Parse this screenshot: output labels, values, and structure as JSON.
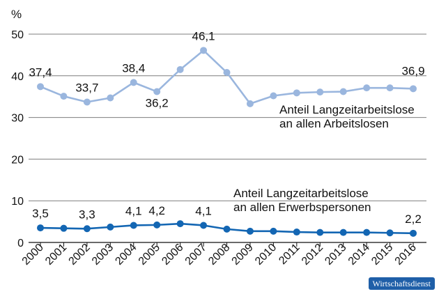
{
  "chart_data": {
    "type": "line",
    "ylabel": "%",
    "ylim": [
      0,
      50
    ],
    "yticks": [
      0,
      10,
      20,
      30,
      40,
      50
    ],
    "categories": [
      "2000",
      "2001",
      "2002",
      "2003",
      "2004",
      "2005",
      "2006",
      "2007",
      "2008",
      "2009",
      "2010",
      "2011",
      "2012",
      "2013",
      "2014",
      "2015",
      "2016"
    ],
    "series": [
      {
        "name": "Anteil Langzeitarbeitslose an allen Arbeitslosen",
        "name_lines": [
          "Anteil Langzeitarbeitslose",
          "an allen Arbeitslosen"
        ],
        "color": "#9ab6de",
        "values": [
          37.4,
          35.1,
          33.7,
          34.7,
          38.4,
          36.2,
          41.5,
          46.1,
          40.8,
          33.3,
          35.2,
          35.9,
          36.1,
          36.2,
          37.1,
          37.1,
          36.9
        ],
        "labels": [
          {
            "index": 0,
            "text": "37,4"
          },
          {
            "index": 2,
            "text": "33,7"
          },
          {
            "index": 4,
            "text": "38,4"
          },
          {
            "index": 5,
            "text": "36,2"
          },
          {
            "index": 7,
            "text": "46,1"
          },
          {
            "index": 16,
            "text": "36,9"
          }
        ]
      },
      {
        "name": "Anteil Langzeitarbeitslose an allen Erwerbspersonen",
        "name_lines": [
          "Anteil Langzeitarbeitslose",
          "an allen Erwerbspersonen"
        ],
        "color": "#1366b3",
        "values": [
          3.5,
          3.4,
          3.3,
          3.7,
          4.1,
          4.2,
          4.5,
          4.1,
          3.2,
          2.7,
          2.7,
          2.5,
          2.4,
          2.4,
          2.4,
          2.3,
          2.2
        ],
        "labels": [
          {
            "index": 0,
            "text": "3,5"
          },
          {
            "index": 2,
            "text": "3,3"
          },
          {
            "index": 4,
            "text": "4,1"
          },
          {
            "index": 5,
            "text": "4,2"
          },
          {
            "index": 7,
            "text": "4,1"
          },
          {
            "index": 16,
            "text": "2,2"
          }
        ]
      }
    ],
    "grid": true,
    "source": "Wirtschaftsdienst"
  }
}
